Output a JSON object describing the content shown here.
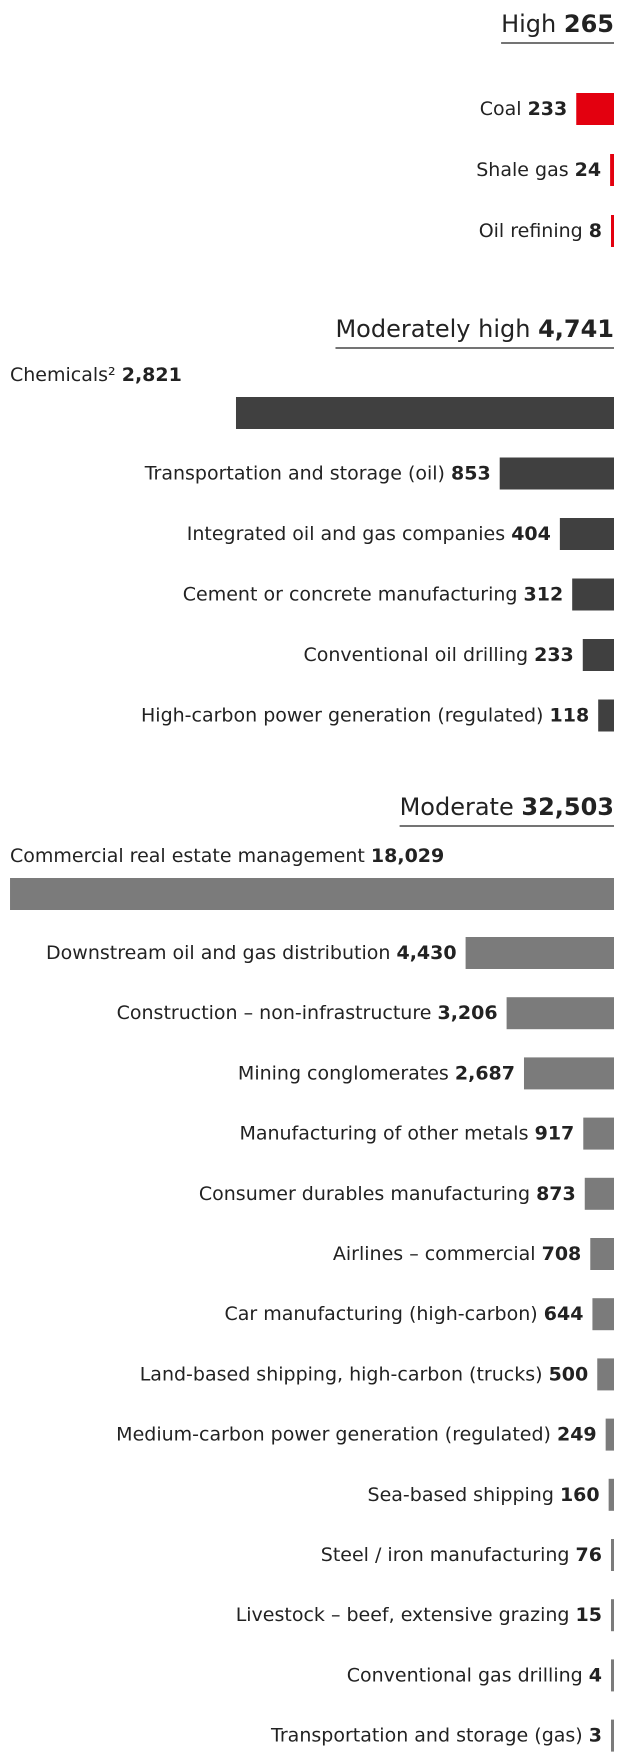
{
  "chart_data": [
    {
      "type": "bar",
      "title": "High",
      "total": 265,
      "color": "#e3000f",
      "categories": [
        "Coal",
        "Shale gas",
        "Oil refining"
      ],
      "values": [
        233,
        24,
        8
      ]
    },
    {
      "type": "bar",
      "title": "Moderately high",
      "total": {
        "value": 4741,
        "label": "4,741"
      },
      "color": "#404040",
      "categories": [
        "Chemicals²",
        "Transportation and storage (oil)",
        "Integrated oil and gas companies",
        "Cement or concrete manufacturing",
        "Conventional oil drilling",
        "High-carbon power generation (regulated)"
      ],
      "values": [
        2821,
        853,
        404,
        312,
        233,
        118
      ],
      "value_labels": [
        "2,821",
        "853",
        "404",
        "312",
        "233",
        "118"
      ]
    },
    {
      "type": "bar",
      "title": "Moderate",
      "total": {
        "value": 32503,
        "label": "32,503"
      },
      "color": "#7b7b7b",
      "categories": [
        "Commercial real estate management",
        "Downstream oil and gas distribution",
        "Construction – non-infrastructure",
        "Mining conglomerates",
        "Manufacturing of other metals",
        "Consumer durables manufacturing",
        "Airlines – commercial",
        "Car manufacturing (high-carbon)",
        "Land-based shipping, high-carbon (trucks)",
        "Medium-carbon power generation (regulated)",
        "Sea-based shipping",
        "Steel / iron manufacturing",
        "Livestock – beef, extensive grazing",
        "Conventional gas drilling",
        "Transportation and storage (gas)"
      ],
      "values": [
        18029,
        4430,
        3206,
        2687,
        917,
        873,
        708,
        644,
        500,
        249,
        160,
        76,
        15,
        4,
        3
      ],
      "value_labels": [
        "18,029",
        "4,430",
        "3,206",
        "2,687",
        "917",
        "873",
        "708",
        "644",
        "500",
        "249",
        "160",
        "76",
        "15",
        "4",
        "3"
      ]
    }
  ]
}
